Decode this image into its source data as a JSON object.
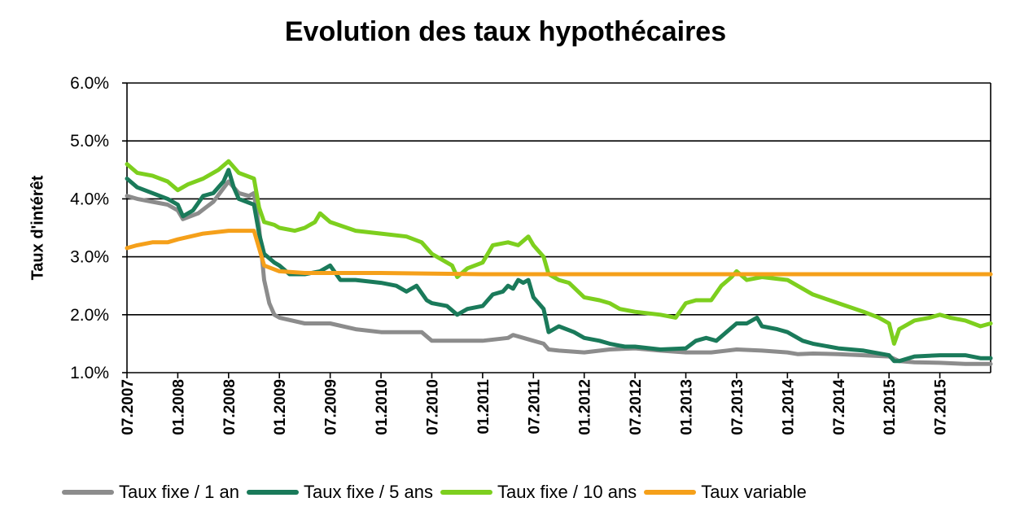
{
  "chart_data": {
    "type": "line",
    "title": "Evolution des taux hypothécaires",
    "xlabel": "",
    "ylabel": "Taux d'intérêt",
    "ylim": [
      1.0,
      6.0
    ],
    "yticks": [
      "1.0%",
      "2.0%",
      "3.0%",
      "4.0%",
      "5.0%",
      "6.0%"
    ],
    "xlim": [
      2007.5,
      2016.0
    ],
    "xticks": [
      {
        "t": 2007.5,
        "label": "07.2007"
      },
      {
        "t": 2008.0,
        "label": "01.2008"
      },
      {
        "t": 2008.5,
        "label": "07.2008"
      },
      {
        "t": 2009.0,
        "label": "01.2009"
      },
      {
        "t": 2009.5,
        "label": "07.2009"
      },
      {
        "t": 2010.0,
        "label": "01.2010"
      },
      {
        "t": 2010.5,
        "label": "07.2010"
      },
      {
        "t": 2011.0,
        "label": "01.2011"
      },
      {
        "t": 2011.5,
        "label": "07.2011"
      },
      {
        "t": 2012.0,
        "label": "01.2012"
      },
      {
        "t": 2012.5,
        "label": "07.2012"
      },
      {
        "t": 2013.0,
        "label": "01.2013"
      },
      {
        "t": 2013.5,
        "label": "07.2013"
      },
      {
        "t": 2014.0,
        "label": "01.2014"
      },
      {
        "t": 2014.5,
        "label": "07.2014"
      },
      {
        "t": 2015.0,
        "label": "01.2015"
      },
      {
        "t": 2015.5,
        "label": "07.2015"
      }
    ],
    "series": [
      {
        "name": "Taux fixe / 1 an",
        "color": "#8c8c8c",
        "points": [
          [
            2007.5,
            4.05
          ],
          [
            2007.6,
            4.0
          ],
          [
            2007.75,
            3.95
          ],
          [
            2007.9,
            3.9
          ],
          [
            2008.0,
            3.8
          ],
          [
            2008.05,
            3.65
          ],
          [
            2008.2,
            3.75
          ],
          [
            2008.35,
            3.95
          ],
          [
            2008.5,
            4.3
          ],
          [
            2008.6,
            4.1
          ],
          [
            2008.7,
            4.05
          ],
          [
            2008.75,
            4.1
          ],
          [
            2008.8,
            3.5
          ],
          [
            2008.85,
            2.6
          ],
          [
            2008.9,
            2.2
          ],
          [
            2008.95,
            2.0
          ],
          [
            2009.0,
            1.95
          ],
          [
            2009.25,
            1.85
          ],
          [
            2009.5,
            1.85
          ],
          [
            2009.75,
            1.75
          ],
          [
            2010.0,
            1.7
          ],
          [
            2010.25,
            1.7
          ],
          [
            2010.4,
            1.7
          ],
          [
            2010.5,
            1.55
          ],
          [
            2010.75,
            1.55
          ],
          [
            2011.0,
            1.55
          ],
          [
            2011.25,
            1.6
          ],
          [
            2011.3,
            1.65
          ],
          [
            2011.5,
            1.55
          ],
          [
            2011.6,
            1.5
          ],
          [
            2011.65,
            1.4
          ],
          [
            2011.75,
            1.38
          ],
          [
            2012.0,
            1.35
          ],
          [
            2012.25,
            1.4
          ],
          [
            2012.5,
            1.42
          ],
          [
            2012.75,
            1.38
          ],
          [
            2013.0,
            1.35
          ],
          [
            2013.25,
            1.35
          ],
          [
            2013.5,
            1.4
          ],
          [
            2013.75,
            1.38
          ],
          [
            2014.0,
            1.35
          ],
          [
            2014.1,
            1.32
          ],
          [
            2014.25,
            1.33
          ],
          [
            2014.5,
            1.32
          ],
          [
            2014.75,
            1.3
          ],
          [
            2015.0,
            1.28
          ],
          [
            2015.1,
            1.2
          ],
          [
            2015.25,
            1.18
          ],
          [
            2015.5,
            1.17
          ],
          [
            2015.75,
            1.15
          ],
          [
            2016.0,
            1.15
          ]
        ]
      },
      {
        "name": "Taux fixe / 5 ans",
        "color": "#1a7a5a",
        "points": [
          [
            2007.5,
            4.35
          ],
          [
            2007.6,
            4.2
          ],
          [
            2007.75,
            4.1
          ],
          [
            2007.9,
            4.0
          ],
          [
            2008.0,
            3.9
          ],
          [
            2008.05,
            3.7
          ],
          [
            2008.15,
            3.8
          ],
          [
            2008.25,
            4.05
          ],
          [
            2008.35,
            4.1
          ],
          [
            2008.45,
            4.3
          ],
          [
            2008.5,
            4.5
          ],
          [
            2008.55,
            4.2
          ],
          [
            2008.6,
            4.0
          ],
          [
            2008.75,
            3.9
          ],
          [
            2008.8,
            3.4
          ],
          [
            2008.85,
            3.05
          ],
          [
            2008.95,
            2.9
          ],
          [
            2009.0,
            2.85
          ],
          [
            2009.1,
            2.7
          ],
          [
            2009.25,
            2.7
          ],
          [
            2009.4,
            2.75
          ],
          [
            2009.5,
            2.85
          ],
          [
            2009.6,
            2.6
          ],
          [
            2009.75,
            2.6
          ],
          [
            2010.0,
            2.55
          ],
          [
            2010.15,
            2.5
          ],
          [
            2010.25,
            2.4
          ],
          [
            2010.35,
            2.5
          ],
          [
            2010.45,
            2.25
          ],
          [
            2010.5,
            2.2
          ],
          [
            2010.65,
            2.15
          ],
          [
            2010.75,
            2.0
          ],
          [
            2010.85,
            2.1
          ],
          [
            2011.0,
            2.15
          ],
          [
            2011.1,
            2.35
          ],
          [
            2011.2,
            2.4
          ],
          [
            2011.25,
            2.5
          ],
          [
            2011.3,
            2.45
          ],
          [
            2011.35,
            2.6
          ],
          [
            2011.4,
            2.55
          ],
          [
            2011.45,
            2.6
          ],
          [
            2011.5,
            2.3
          ],
          [
            2011.6,
            2.1
          ],
          [
            2011.65,
            1.7
          ],
          [
            2011.75,
            1.8
          ],
          [
            2011.9,
            1.7
          ],
          [
            2012.0,
            1.6
          ],
          [
            2012.15,
            1.55
          ],
          [
            2012.25,
            1.5
          ],
          [
            2012.4,
            1.45
          ],
          [
            2012.5,
            1.45
          ],
          [
            2012.75,
            1.4
          ],
          [
            2013.0,
            1.42
          ],
          [
            2013.1,
            1.55
          ],
          [
            2013.2,
            1.6
          ],
          [
            2013.3,
            1.55
          ],
          [
            2013.5,
            1.85
          ],
          [
            2013.6,
            1.85
          ],
          [
            2013.7,
            1.95
          ],
          [
            2013.75,
            1.8
          ],
          [
            2013.9,
            1.75
          ],
          [
            2014.0,
            1.7
          ],
          [
            2014.15,
            1.55
          ],
          [
            2014.25,
            1.5
          ],
          [
            2014.5,
            1.42
          ],
          [
            2014.75,
            1.38
          ],
          [
            2015.0,
            1.3
          ],
          [
            2015.05,
            1.2
          ],
          [
            2015.1,
            1.2
          ],
          [
            2015.25,
            1.28
          ],
          [
            2015.5,
            1.3
          ],
          [
            2015.75,
            1.3
          ],
          [
            2015.9,
            1.25
          ],
          [
            2016.0,
            1.25
          ]
        ]
      },
      {
        "name": "Taux fixe / 10 ans",
        "color": "#7dcf1e",
        "points": [
          [
            2007.5,
            4.6
          ],
          [
            2007.6,
            4.45
          ],
          [
            2007.75,
            4.4
          ],
          [
            2007.9,
            4.3
          ],
          [
            2008.0,
            4.15
          ],
          [
            2008.1,
            4.25
          ],
          [
            2008.25,
            4.35
          ],
          [
            2008.4,
            4.5
          ],
          [
            2008.5,
            4.65
          ],
          [
            2008.6,
            4.45
          ],
          [
            2008.75,
            4.35
          ],
          [
            2008.8,
            3.85
          ],
          [
            2008.85,
            3.6
          ],
          [
            2008.95,
            3.55
          ],
          [
            2009.0,
            3.5
          ],
          [
            2009.15,
            3.45
          ],
          [
            2009.25,
            3.5
          ],
          [
            2009.35,
            3.6
          ],
          [
            2009.4,
            3.75
          ],
          [
            2009.5,
            3.6
          ],
          [
            2009.75,
            3.45
          ],
          [
            2010.0,
            3.4
          ],
          [
            2010.25,
            3.35
          ],
          [
            2010.4,
            3.25
          ],
          [
            2010.5,
            3.05
          ],
          [
            2010.6,
            2.95
          ],
          [
            2010.7,
            2.85
          ],
          [
            2010.75,
            2.65
          ],
          [
            2010.85,
            2.8
          ],
          [
            2011.0,
            2.9
          ],
          [
            2011.1,
            3.2
          ],
          [
            2011.25,
            3.25
          ],
          [
            2011.35,
            3.2
          ],
          [
            2011.45,
            3.35
          ],
          [
            2011.5,
            3.2
          ],
          [
            2011.6,
            3.0
          ],
          [
            2011.65,
            2.7
          ],
          [
            2011.75,
            2.6
          ],
          [
            2011.85,
            2.55
          ],
          [
            2012.0,
            2.3
          ],
          [
            2012.15,
            2.25
          ],
          [
            2012.25,
            2.2
          ],
          [
            2012.35,
            2.1
          ],
          [
            2012.5,
            2.05
          ],
          [
            2012.75,
            2.0
          ],
          [
            2012.9,
            1.95
          ],
          [
            2013.0,
            2.2
          ],
          [
            2013.1,
            2.25
          ],
          [
            2013.25,
            2.25
          ],
          [
            2013.35,
            2.5
          ],
          [
            2013.45,
            2.65
          ],
          [
            2013.5,
            2.75
          ],
          [
            2013.6,
            2.6
          ],
          [
            2013.75,
            2.65
          ],
          [
            2014.0,
            2.6
          ],
          [
            2014.1,
            2.5
          ],
          [
            2014.25,
            2.35
          ],
          [
            2014.5,
            2.2
          ],
          [
            2014.75,
            2.05
          ],
          [
            2014.9,
            1.95
          ],
          [
            2015.0,
            1.85
          ],
          [
            2015.05,
            1.5
          ],
          [
            2015.1,
            1.75
          ],
          [
            2015.25,
            1.9
          ],
          [
            2015.4,
            1.95
          ],
          [
            2015.5,
            2.0
          ],
          [
            2015.6,
            1.95
          ],
          [
            2015.75,
            1.9
          ],
          [
            2015.9,
            1.8
          ],
          [
            2016.0,
            1.85
          ]
        ]
      },
      {
        "name": "Taux variable",
        "color": "#f5a01a",
        "points": [
          [
            2007.5,
            3.15
          ],
          [
            2007.6,
            3.2
          ],
          [
            2007.75,
            3.25
          ],
          [
            2007.9,
            3.25
          ],
          [
            2008.0,
            3.3
          ],
          [
            2008.25,
            3.4
          ],
          [
            2008.5,
            3.45
          ],
          [
            2008.65,
            3.45
          ],
          [
            2008.75,
            3.45
          ],
          [
            2008.8,
            3.15
          ],
          [
            2008.85,
            2.85
          ],
          [
            2009.0,
            2.75
          ],
          [
            2009.25,
            2.72
          ],
          [
            2009.5,
            2.72
          ],
          [
            2010.0,
            2.72
          ],
          [
            2011.0,
            2.7
          ],
          [
            2012.0,
            2.7
          ],
          [
            2013.0,
            2.7
          ],
          [
            2014.0,
            2.7
          ],
          [
            2015.0,
            2.7
          ],
          [
            2016.0,
            2.7
          ]
        ]
      }
    ]
  }
}
